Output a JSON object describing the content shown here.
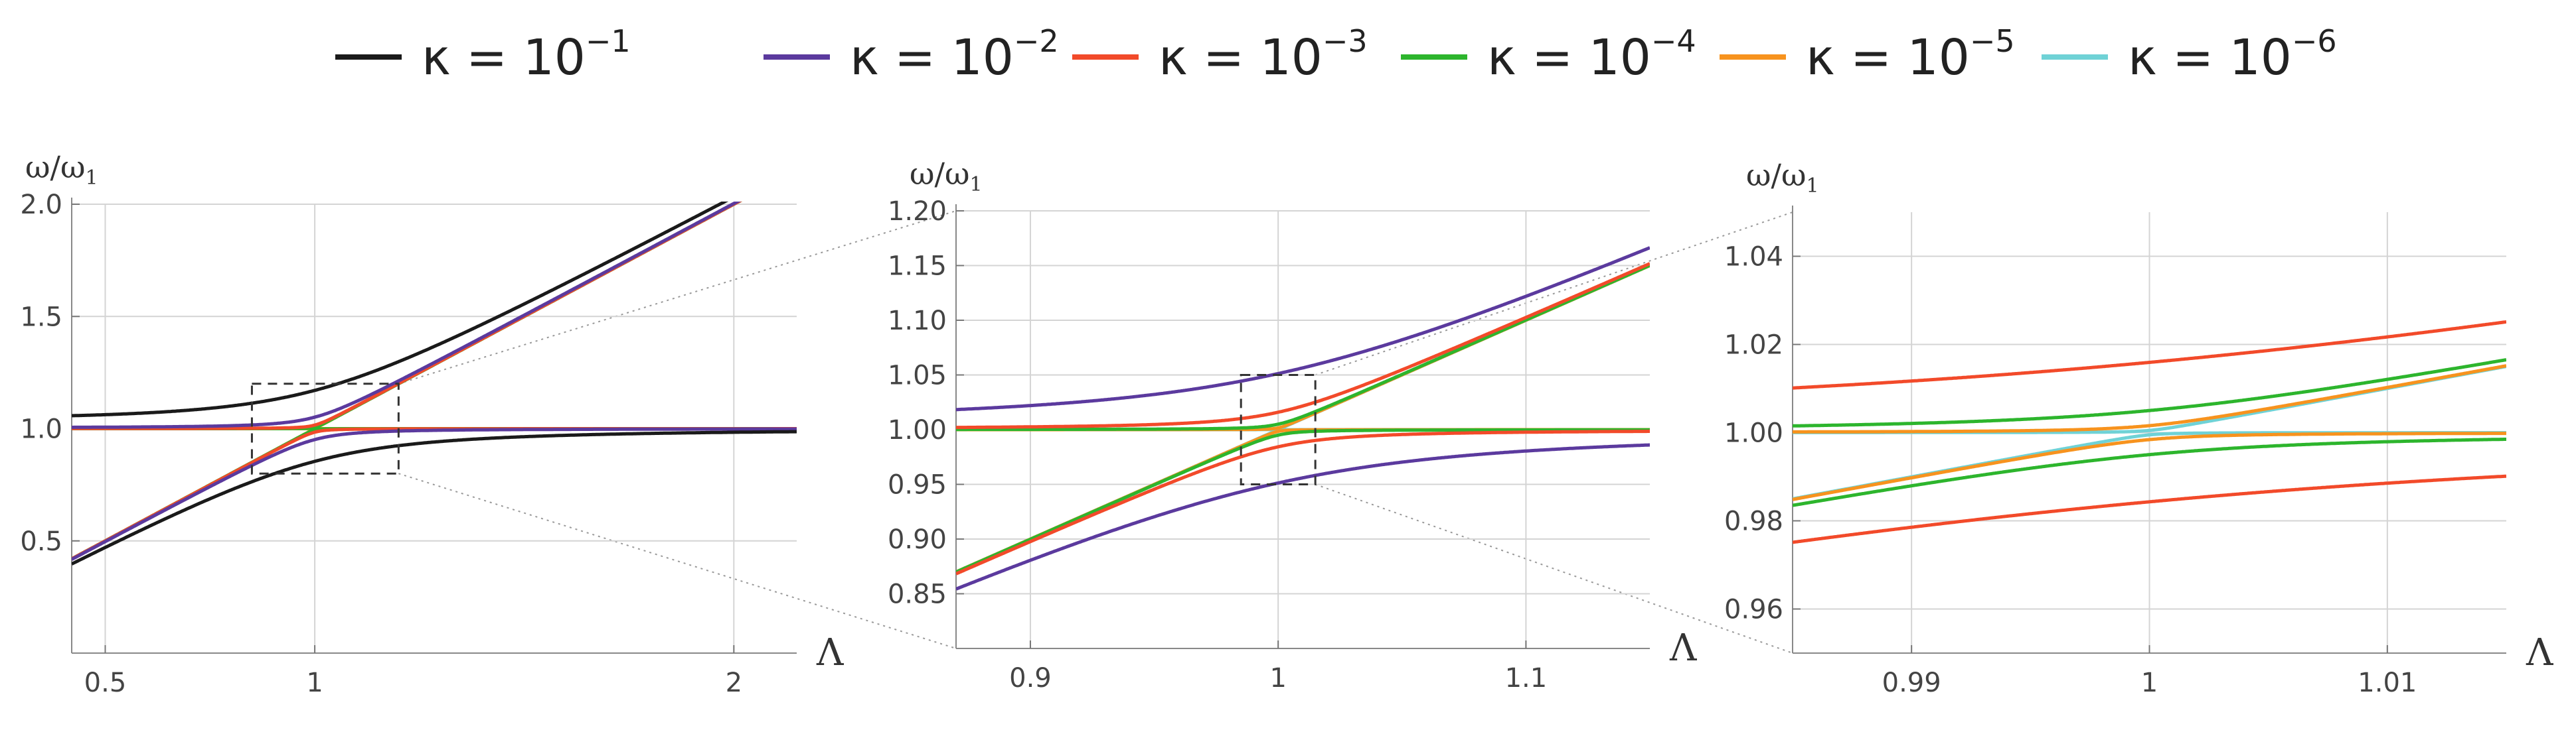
{
  "legend": {
    "symbol": "κ = 10",
    "entries": [
      {
        "exp": "−1",
        "color": "#1a1a1a"
      },
      {
        "exp": "−2",
        "color": "#5b3a9e"
      },
      {
        "exp": "−3",
        "color": "#f24a2a"
      },
      {
        "exp": "−4",
        "color": "#2db52d"
      },
      {
        "exp": "−5",
        "color": "#f7931e"
      },
      {
        "exp": "−6",
        "color": "#6fd2d6"
      }
    ]
  },
  "chart_data": [
    {
      "type": "line",
      "ylabel": "ω/ω",
      "ylabel_sub": "1",
      "xlabel": "Λ",
      "xlim": [
        0.42,
        2.15
      ],
      "ylim": [
        0,
        2.0
      ],
      "xticks": [
        0.5,
        1,
        2
      ],
      "xtick_labels": [
        "0.5",
        "1",
        "2"
      ],
      "yticks": [
        0.5,
        1.0,
        1.5,
        2.0
      ],
      "ytick_labels": [
        "0.5",
        "1.0",
        "1.5",
        "2.0"
      ],
      "grid": true,
      "inset_box": {
        "x": [
          0.85,
          1.2
        ],
        "y": [
          0.8,
          1.2
        ]
      },
      "kappas": [
        0.1,
        0.01,
        0.001,
        0.0001,
        1e-05,
        1e-06
      ]
    },
    {
      "type": "line",
      "ylabel": "ω/ω",
      "ylabel_sub": "1",
      "xlabel": "Λ",
      "xlim": [
        0.87,
        1.15
      ],
      "ylim": [
        0.8,
        1.2
      ],
      "xticks": [
        0.9,
        1.0,
        1.1
      ],
      "xtick_labels": [
        "0.9",
        "1",
        "1.1"
      ],
      "yticks": [
        0.85,
        0.9,
        0.95,
        1.0,
        1.05,
        1.1,
        1.15,
        1.2
      ],
      "ytick_labels": [
        "0.85",
        "0.90",
        "0.95",
        "1.00",
        "1.05",
        "1.10",
        "1.15",
        "1.20"
      ],
      "grid": true,
      "inset_box": {
        "x": [
          0.985,
          1.015
        ],
        "y": [
          0.95,
          1.05
        ]
      },
      "kappas": [
        0.01,
        0.001,
        0.0001,
        1e-05,
        1e-06
      ]
    },
    {
      "type": "line",
      "ylabel": "ω/ω",
      "ylabel_sub": "1",
      "xlabel": "Λ",
      "xlim": [
        0.985,
        1.015
      ],
      "ylim": [
        0.95,
        1.05
      ],
      "xticks": [
        0.99,
        1.0,
        1.01
      ],
      "xtick_labels": [
        "0.99",
        "1",
        "1.01"
      ],
      "yticks": [
        0.96,
        0.98,
        1.0,
        1.02,
        1.04
      ],
      "ytick_labels": [
        "0.96",
        "0.98",
        "1.00",
        "1.02",
        "1.04"
      ],
      "grid": true,
      "kappas": [
        0.001,
        0.0001,
        1e-05,
        1e-06
      ]
    }
  ]
}
